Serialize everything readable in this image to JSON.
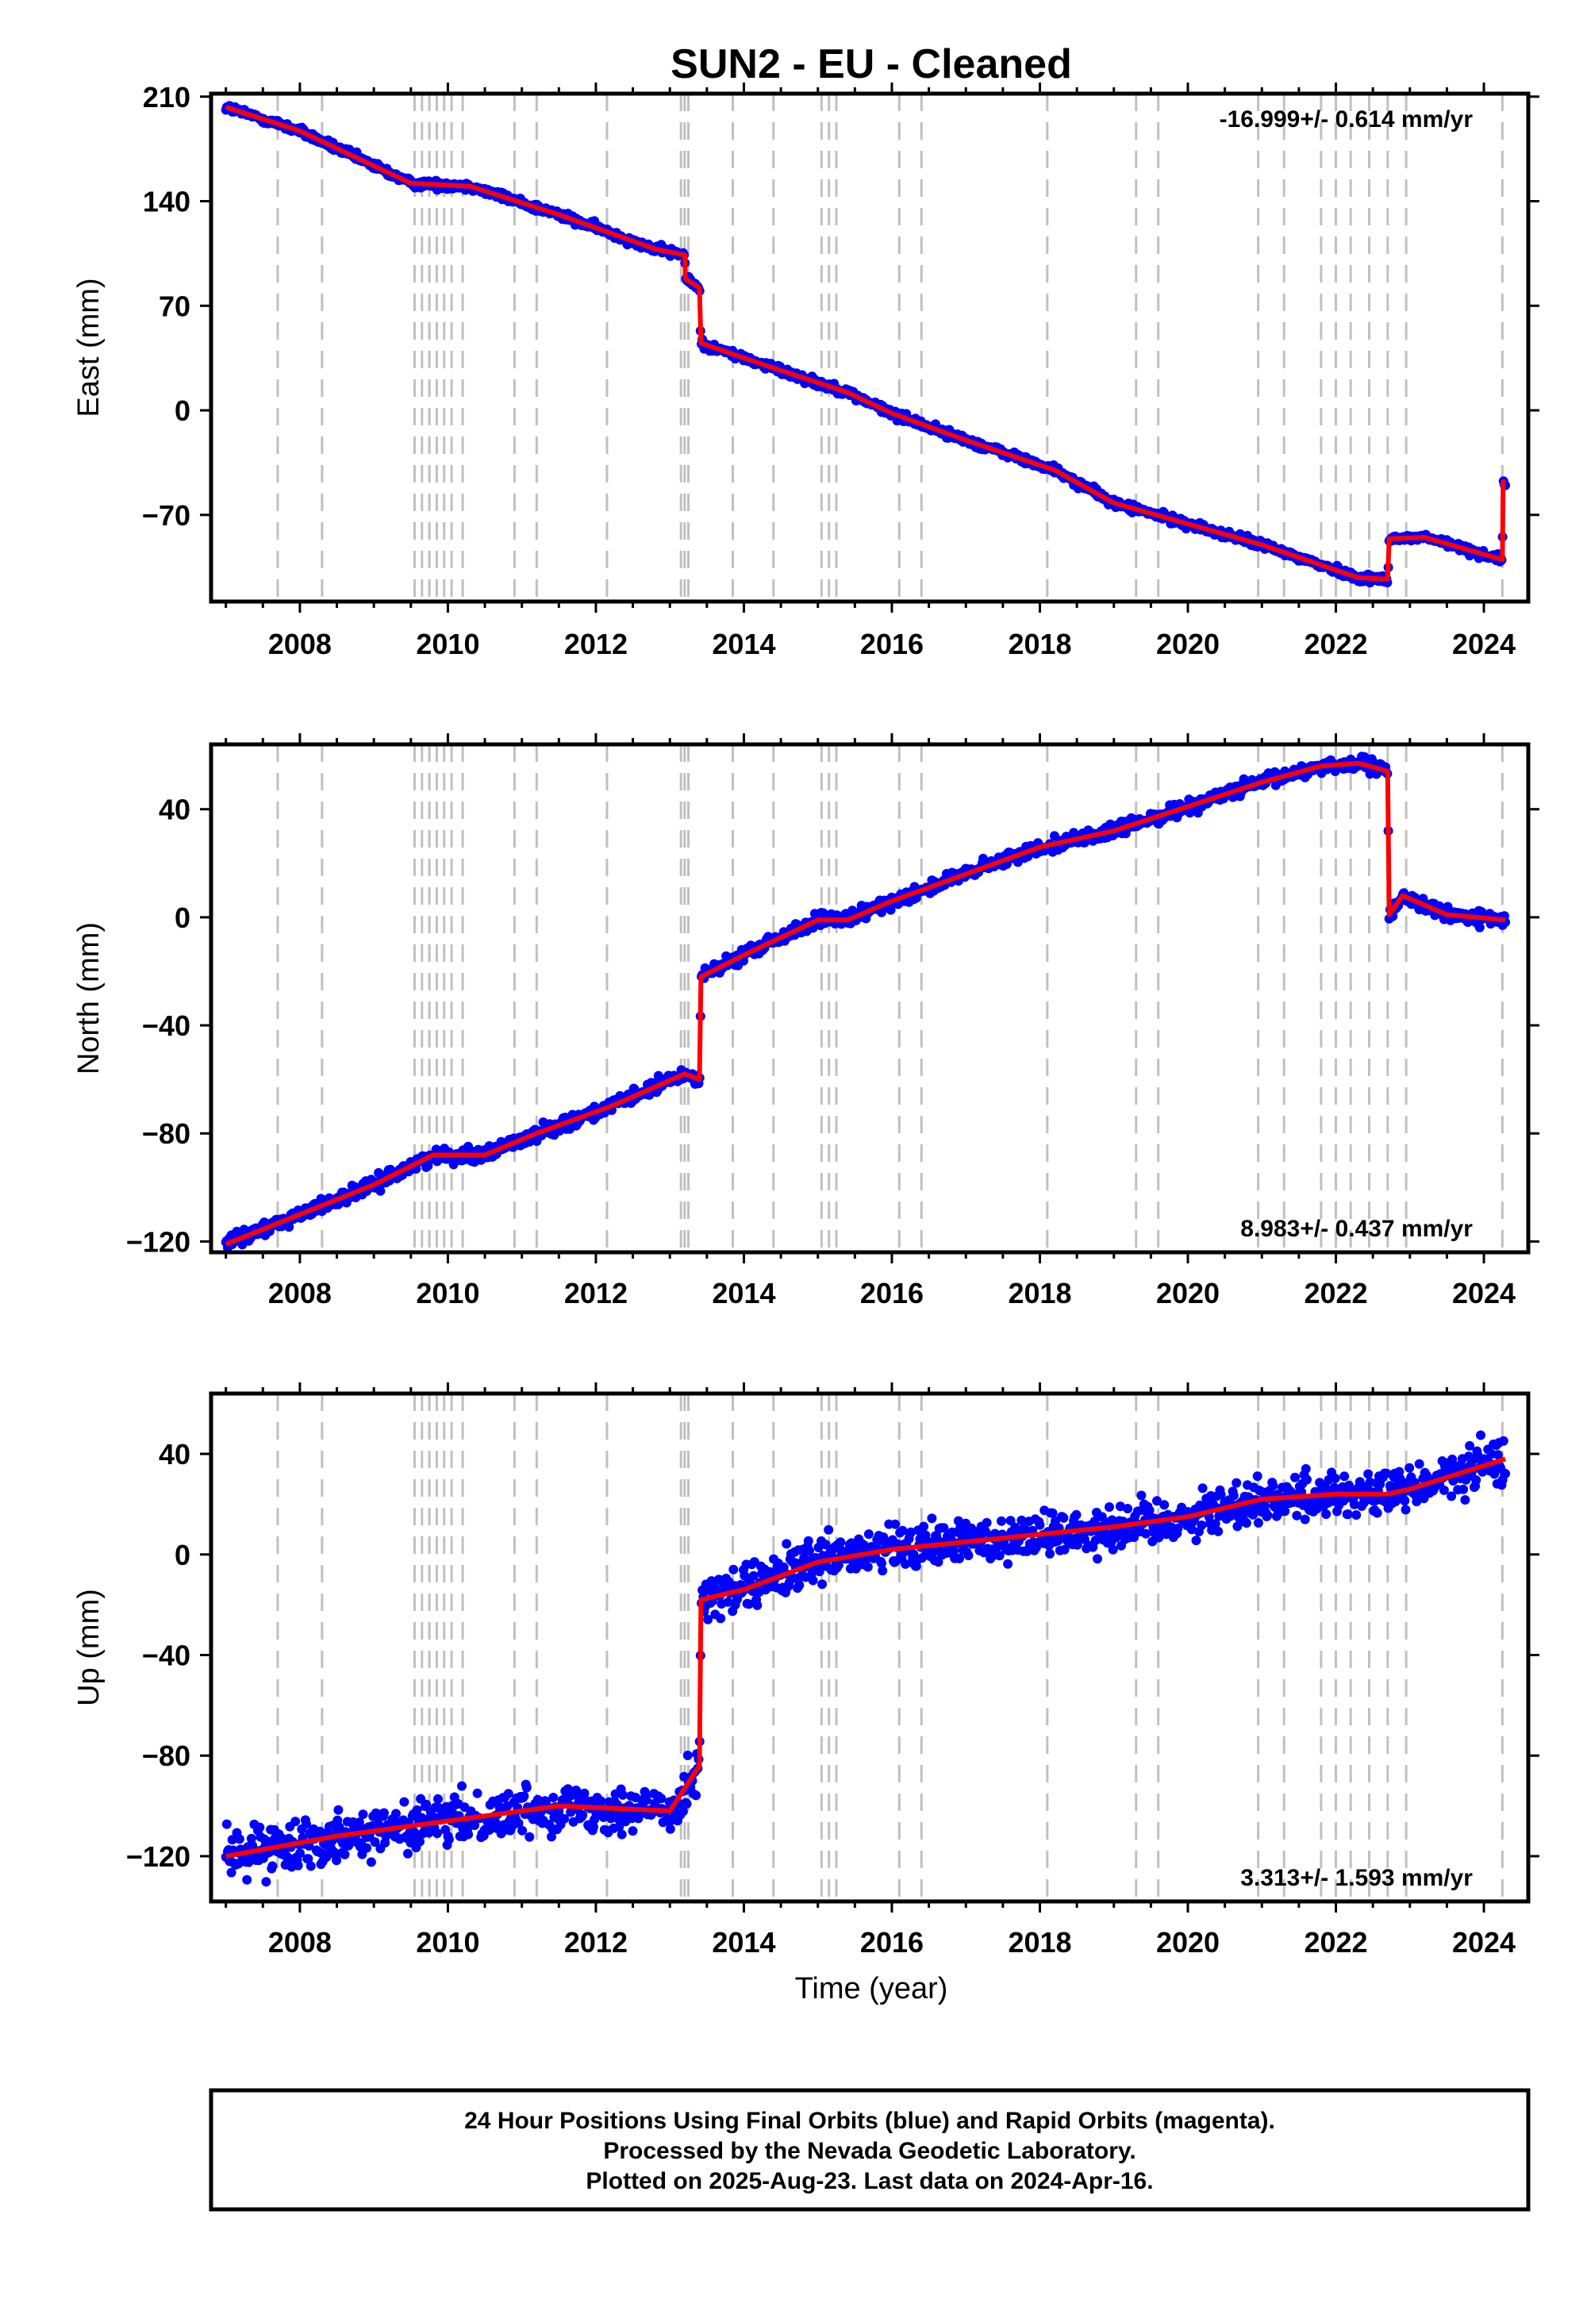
{
  "title": "SUN2  - EU - Cleaned",
  "xlabel": "Time (year)",
  "footer": {
    "line1": "24 Hour Positions Using Final Orbits (blue) and Rapid Orbits (magenta).",
    "line2": "Processed by the Nevada Geodetic Laboratory.",
    "line3": "Plotted on 2025-Aug-23. Last data on 2024-Apr-16."
  },
  "colors": {
    "points": "#0000ff",
    "model": "#ff0000",
    "breaks": "#c0c0c0",
    "frame": "#000000"
  },
  "chart_data": {
    "type": "scatter",
    "x_range": [
      2006.8,
      2024.6
    ],
    "x_ticks": [
      2008,
      2010,
      2012,
      2014,
      2016,
      2018,
      2020,
      2022,
      2024
    ],
    "x_tick_labels": [
      "2008",
      "2010",
      "2012",
      "2014",
      "2016",
      "2018",
      "2020",
      "2022",
      "2024"
    ],
    "data_range": [
      2007.0,
      2024.29
    ],
    "breaks": [
      2007.7,
      2008.3,
      2009.55,
      2009.65,
      2009.75,
      2009.85,
      2009.95,
      2010.05,
      2010.2,
      2010.9,
      2011.2,
      2012.15,
      2013.15,
      2013.2,
      2013.25,
      2013.85,
      2014.4,
      2015.05,
      2015.15,
      2015.25,
      2016.1,
      2016.4,
      2018.1,
      2019.3,
      2019.6,
      2020.95,
      2021.3,
      2021.8,
      2022.0,
      2022.2,
      2022.45,
      2022.7,
      2022.95,
      2024.25
    ],
    "panels": [
      {
        "name": "east",
        "ylabel": "East (mm)",
        "ylim": [
          -128,
          212
        ],
        "yticks": [
          210,
          140,
          70,
          0,
          -70
        ],
        "ytick_labels": [
          "210",
          "140",
          "70",
          "0",
          "−70"
        ],
        "rate_text": "-16.999+/- 0.614 mm/yr",
        "rate_pos": "top-right",
        "noise": 2.0,
        "model": [
          [
            2007.0,
            203
          ],
          [
            2008.0,
            187
          ],
          [
            2009.5,
            152
          ],
          [
            2010.3,
            150
          ],
          [
            2011.5,
            131
          ],
          [
            2012.8,
            108
          ],
          [
            2013.2,
            104
          ],
          [
            2013.21,
            88
          ],
          [
            2013.4,
            82
          ],
          [
            2013.42,
            45
          ],
          [
            2014.3,
            30
          ],
          [
            2015.4,
            12
          ],
          [
            2016.0,
            -2
          ],
          [
            2017.0,
            -20
          ],
          [
            2018.2,
            -40
          ],
          [
            2019.0,
            -62
          ],
          [
            2020.0,
            -76
          ],
          [
            2021.0,
            -90
          ],
          [
            2022.3,
            -112
          ],
          [
            2022.7,
            -113
          ],
          [
            2022.72,
            -86
          ],
          [
            2023.2,
            -85
          ],
          [
            2024.25,
            -100
          ],
          [
            2024.26,
            -48
          ],
          [
            2024.29,
            -48
          ]
        ]
      },
      {
        "name": "north",
        "ylabel": "North (mm)",
        "ylim": [
          -124,
          64
        ],
        "yticks": [
          40,
          0,
          -40,
          -80,
          -120
        ],
        "ytick_labels": [
          "40",
          "0",
          "−40",
          "−80",
          "−120"
        ],
        "rate_text": "8.983+/- 0.437 mm/yr",
        "rate_pos": "bottom-right",
        "noise": 1.8,
        "model": [
          [
            2007.0,
            -121
          ],
          [
            2008.0,
            -110
          ],
          [
            2009.0,
            -99
          ],
          [
            2009.8,
            -88
          ],
          [
            2010.5,
            -88
          ],
          [
            2011.2,
            -80
          ],
          [
            2012.2,
            -70
          ],
          [
            2013.2,
            -58
          ],
          [
            2013.4,
            -60
          ],
          [
            2013.42,
            -22
          ],
          [
            2014.0,
            -14
          ],
          [
            2015.0,
            -1
          ],
          [
            2015.4,
            -1
          ],
          [
            2016.0,
            6
          ],
          [
            2017.0,
            16
          ],
          [
            2018.0,
            26
          ],
          [
            2019.0,
            32
          ],
          [
            2020.0,
            41
          ],
          [
            2021.0,
            50
          ],
          [
            2021.8,
            56
          ],
          [
            2022.3,
            57
          ],
          [
            2022.45,
            56
          ],
          [
            2022.7,
            54
          ],
          [
            2022.72,
            1
          ],
          [
            2022.9,
            8
          ],
          [
            2023.5,
            1
          ],
          [
            2024.29,
            -1
          ]
        ]
      },
      {
        "name": "up",
        "ylabel": "Up (mm)",
        "ylim": [
          -138,
          64
        ],
        "yticks": [
          40,
          0,
          -40,
          -80,
          -120
        ],
        "ytick_labels": [
          "40",
          "0",
          "−40",
          "−80",
          "−120"
        ],
        "rate_text": "3.313+/- 1.593 mm/yr",
        "rate_pos": "bottom-right",
        "noise": 6.5,
        "model": [
          [
            2007.0,
            -120
          ],
          [
            2008.5,
            -112
          ],
          [
            2010.0,
            -106
          ],
          [
            2011.5,
            -100
          ],
          [
            2013.0,
            -102
          ],
          [
            2013.4,
            -84
          ],
          [
            2013.42,
            -18
          ],
          [
            2014.0,
            -14
          ],
          [
            2015.0,
            -3
          ],
          [
            2016.0,
            2
          ],
          [
            2017.0,
            5
          ],
          [
            2018.0,
            8
          ],
          [
            2019.0,
            11
          ],
          [
            2020.0,
            15
          ],
          [
            2021.0,
            22
          ],
          [
            2022.0,
            24
          ],
          [
            2022.7,
            24
          ],
          [
            2023.0,
            26
          ],
          [
            2024.29,
            38
          ]
        ]
      }
    ]
  }
}
